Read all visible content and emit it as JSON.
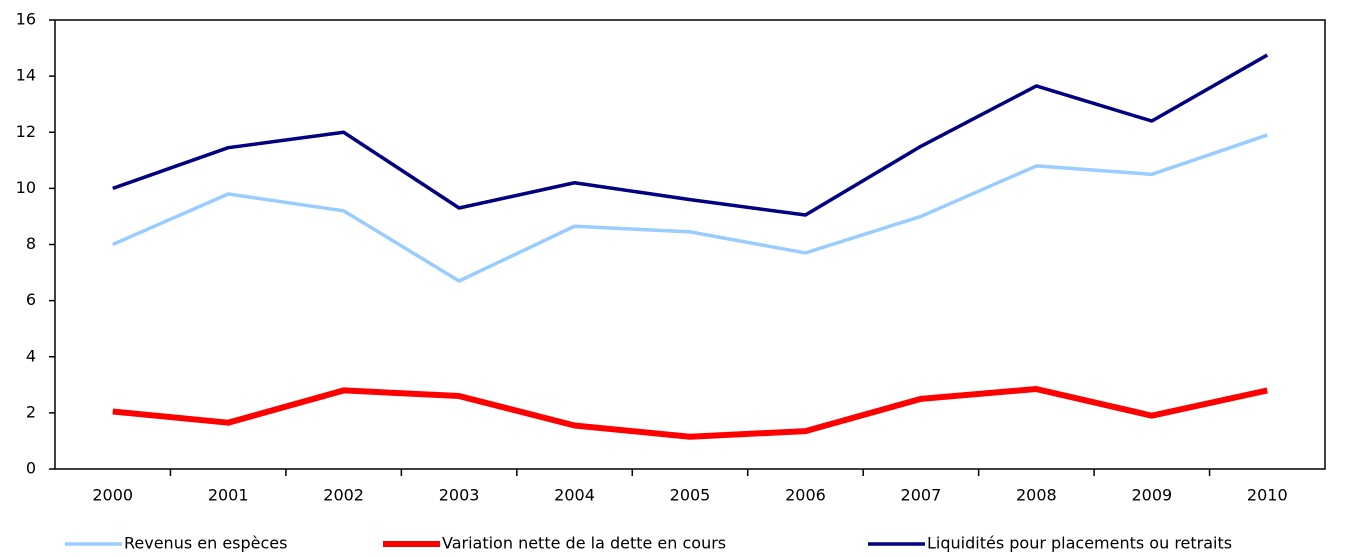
{
  "chart_data": {
    "type": "line",
    "categories": [
      "2000",
      "2001",
      "2002",
      "2003",
      "2004",
      "2005",
      "2006",
      "2007",
      "2008",
      "2009",
      "2010"
    ],
    "series": [
      {
        "name": "Revenus en espèces",
        "color": "#99ccff",
        "values": [
          8.0,
          9.8,
          9.2,
          6.7,
          8.65,
          8.45,
          7.7,
          9.0,
          10.8,
          10.5,
          11.9
        ]
      },
      {
        "name": "Variation nette de la dette en cours",
        "color": "#ff0000",
        "values": [
          2.05,
          1.65,
          2.8,
          2.6,
          1.55,
          1.15,
          1.35,
          2.5,
          2.85,
          1.9,
          2.8
        ]
      },
      {
        "name": "Liquidités pour placements ou retraits",
        "color": "#000080",
        "values": [
          10.0,
          11.45,
          12.0,
          9.3,
          10.2,
          9.6,
          9.05,
          11.5,
          13.65,
          12.4,
          14.75
        ]
      }
    ],
    "ylim": [
      0,
      16
    ],
    "yticks": [
      0,
      2,
      4,
      6,
      8,
      10,
      12,
      14,
      16
    ],
    "grid": false,
    "legend": "bottom"
  }
}
